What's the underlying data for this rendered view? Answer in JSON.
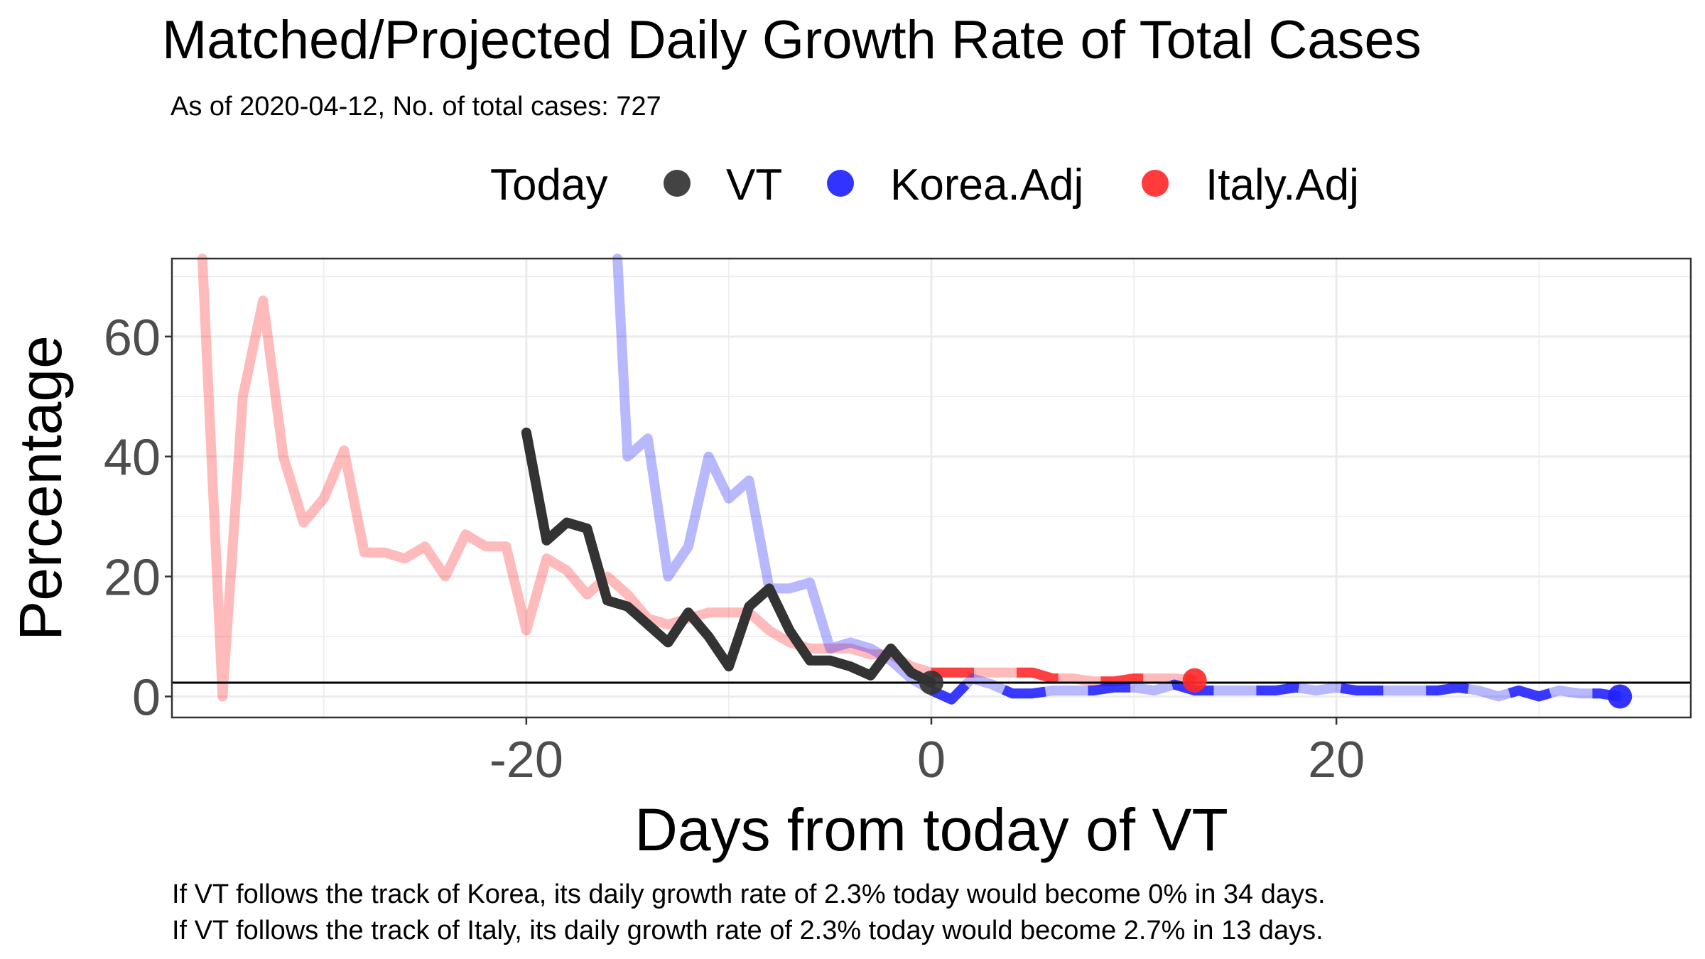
{
  "chart_data": {
    "type": "line",
    "title": "Matched/Projected Daily Growth Rate of Total Cases",
    "subtitle": "As of 2020-04-12, No. of total cases: 727",
    "xlabel": "Days from today of VT",
    "ylabel": "Percentage",
    "xlim": [
      -37.5,
      37.5
    ],
    "ylim": [
      -3.5,
      73
    ],
    "x_ticks": [
      -20,
      0,
      20
    ],
    "y_ticks": [
      0,
      20,
      40,
      60
    ],
    "grid": true,
    "legend": {
      "position": "top",
      "title": "Today",
      "entries": [
        {
          "label": "VT",
          "color": "#333333"
        },
        {
          "label": "Korea.Adj",
          "color": "#2222ff"
        },
        {
          "label": "Italy.Adj",
          "color": "#ff2a2a"
        }
      ]
    },
    "reference_line": {
      "y": 2.3,
      "color": "#000000"
    },
    "today_markers": [
      {
        "series": "VT",
        "x": 0,
        "y": 2.3
      },
      {
        "series": "Korea.Adj",
        "x": 34,
        "y": 0
      },
      {
        "series": "Italy.Adj",
        "x": 13,
        "y": 2.7
      }
    ],
    "series": [
      {
        "name": "Italy.Adj",
        "color": "#ff2a2a",
        "x": [
          -36,
          -35,
          -34,
          -33,
          -32,
          -31,
          -30,
          -29,
          -28,
          -27,
          -26,
          -25,
          -24,
          -23,
          -22,
          -21,
          -20,
          -19,
          -18,
          -17,
          -16,
          -15,
          -14,
          -13,
          -12,
          -11,
          -10,
          -9,
          -8,
          -7,
          -6,
          -5,
          -4,
          -3,
          -2,
          -1,
          0,
          1,
          2,
          3,
          4,
          5,
          6,
          7,
          8,
          9,
          10,
          11,
          12,
          13
        ],
        "y": [
          73,
          0,
          50,
          66,
          40,
          29,
          33,
          41,
          24,
          24,
          23,
          25,
          20,
          27,
          25,
          25,
          11,
          23,
          21,
          17,
          20,
          17,
          13,
          12,
          13,
          14,
          14,
          14,
          11,
          9,
          8,
          8,
          8,
          7,
          7,
          5,
          4,
          4,
          4,
          4,
          4,
          4,
          3,
          3,
          2.5,
          2.5,
          3,
          3,
          3,
          2.7
        ]
      },
      {
        "name": "Korea.Adj",
        "color": "#2222ff",
        "x": [
          -15.5,
          -15,
          -14,
          -13,
          -12,
          -11,
          -10,
          -9,
          -8,
          -7,
          -6,
          -5,
          -4,
          -3,
          -2,
          -1,
          0,
          1,
          2,
          3,
          4,
          5,
          6,
          7,
          8,
          9,
          10,
          11,
          12,
          13,
          14,
          15,
          16,
          17,
          18,
          19,
          20,
          21,
          22,
          23,
          24,
          25,
          26,
          27,
          28,
          29,
          30,
          31,
          32,
          33,
          34
        ],
        "y": [
          73,
          40,
          43,
          20,
          25,
          40,
          33,
          36,
          18,
          18,
          19,
          8,
          9,
          8,
          6,
          3,
          1,
          -0.5,
          3,
          2,
          0.5,
          0.5,
          1,
          1,
          1,
          1.5,
          1.5,
          1,
          2,
          1,
          1,
          1,
          1,
          1,
          1.5,
          1,
          1.5,
          1,
          1,
          1,
          1,
          1,
          1.5,
          1,
          0,
          1,
          0,
          1,
          0.5,
          0.5,
          0
        ]
      },
      {
        "name": "VT",
        "color": "#333333",
        "x": [
          -20,
          -19,
          -18,
          -17,
          -16,
          -15,
          -14,
          -13,
          -12,
          -11,
          -10,
          -9,
          -8,
          -7,
          -6,
          -5,
          -4,
          -3,
          -2,
          -1,
          0
        ],
        "y": [
          44,
          26,
          29,
          28,
          16,
          15,
          12,
          9,
          14,
          10,
          5,
          15,
          18,
          11,
          6,
          6,
          5,
          3.5,
          8,
          4,
          2.3
        ]
      }
    ]
  },
  "captions": [
    "If VT follows the track of Korea, its daily growth rate of 2.3% today would become 0% in 34 days.",
    "If VT follows the track of Italy, its daily growth rate of 2.3% today would become 2.7% in 13 days."
  ]
}
